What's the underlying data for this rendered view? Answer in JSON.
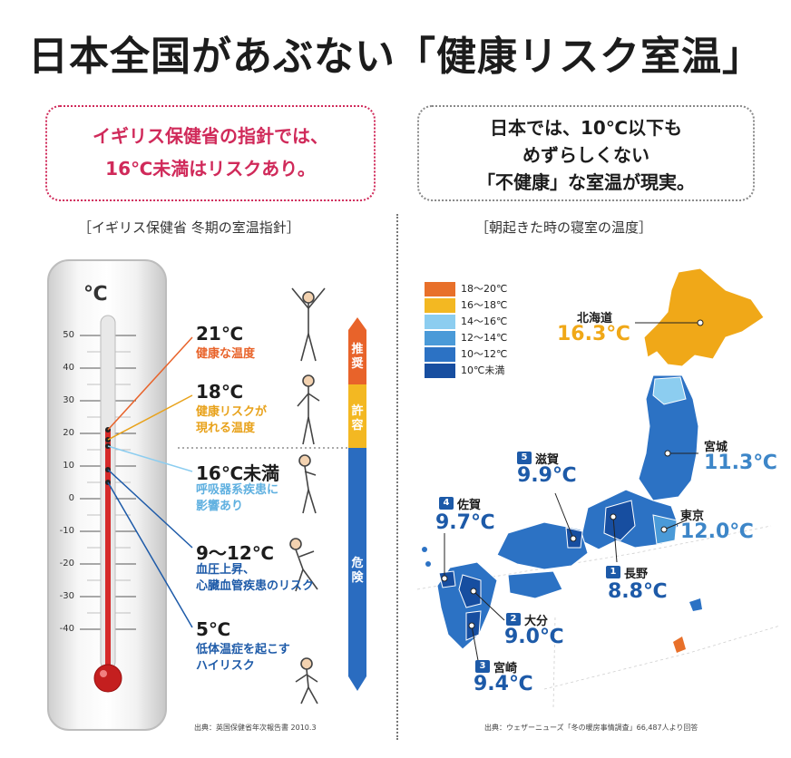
{
  "title": "日本全国があぶない「健康リスク室温」",
  "left_callout": {
    "line1": "イギリス保健省の指針では、",
    "line2": "16℃未満はリスクあり。"
  },
  "right_callout": {
    "line1": "日本では、10℃以下も",
    "line2": "めずらしくない",
    "line3": "「不健康」な室温が現実。"
  },
  "left_section_title": "［イギリス保健省 冬期の室温指針］",
  "right_section_title": "［朝起きた時の寝室の温度］",
  "thermometer": {
    "unit": "℃",
    "ticks": [
      "50",
      "40",
      "30",
      "20",
      "10",
      "0",
      "-10",
      "-20",
      "-30",
      "-40"
    ],
    "levels": [
      {
        "temp": "21℃",
        "desc": [
          "健康な温度"
        ],
        "color": "#e8632a"
      },
      {
        "temp": "18℃",
        "desc": [
          "健康リスクが",
          "現れる温度"
        ],
        "color": "#e8a21b"
      },
      {
        "temp": "16℃未満",
        "desc": [
          "呼吸器系疾患に",
          "影響あり"
        ],
        "color": "#5fb0e0"
      },
      {
        "temp": "9～12℃",
        "desc": [
          "血圧上昇、",
          "心臓血管疾患のリスク"
        ],
        "color": "#1d5aa8"
      },
      {
        "temp": "5℃",
        "desc": [
          "低体温症を起こす",
          "ハイリスク"
        ],
        "color": "#1d5aa8"
      }
    ],
    "bar": {
      "recommended": "推奨",
      "acceptable": "許容",
      "danger": "危険"
    }
  },
  "left_source": "出典：英国保健省年次報告書 2010.3",
  "legend": [
    {
      "label": "18～20℃",
      "color": "#e8702a"
    },
    {
      "label": "16～18℃",
      "color": "#f3b822"
    },
    {
      "label": "14～16℃",
      "color": "#8ccdf0"
    },
    {
      "label": "12～14℃",
      "color": "#4a9ad8"
    },
    {
      "label": "10～12℃",
      "color": "#2c72c4"
    },
    {
      "label": "10℃未満",
      "color": "#174ea0"
    }
  ],
  "prefectures": [
    {
      "name": "北海道",
      "temp": "16.3℃",
      "color": "#f0a818",
      "rank": ""
    },
    {
      "name": "宮城",
      "temp": "11.3℃",
      "color": "#3d86c8",
      "rank": ""
    },
    {
      "name": "東京",
      "temp": "12.0℃",
      "color": "#3d86c8",
      "rank": ""
    },
    {
      "name": "滋賀",
      "temp": "9.9℃",
      "color": "#1d5aa8",
      "rank": "5"
    },
    {
      "name": "佐賀",
      "temp": "9.7℃",
      "color": "#1d5aa8",
      "rank": "4"
    },
    {
      "name": "長野",
      "temp": "8.8℃",
      "color": "#1d5aa8",
      "rank": "1"
    },
    {
      "name": "大分",
      "temp": "9.0℃",
      "color": "#1d5aa8",
      "rank": "2"
    },
    {
      "name": "宮崎",
      "temp": "9.4℃",
      "color": "#1d5aa8",
      "rank": "3"
    }
  ],
  "right_source": "出典：ウェザーニューズ「冬の暖房事情調査」66,487人より回答"
}
